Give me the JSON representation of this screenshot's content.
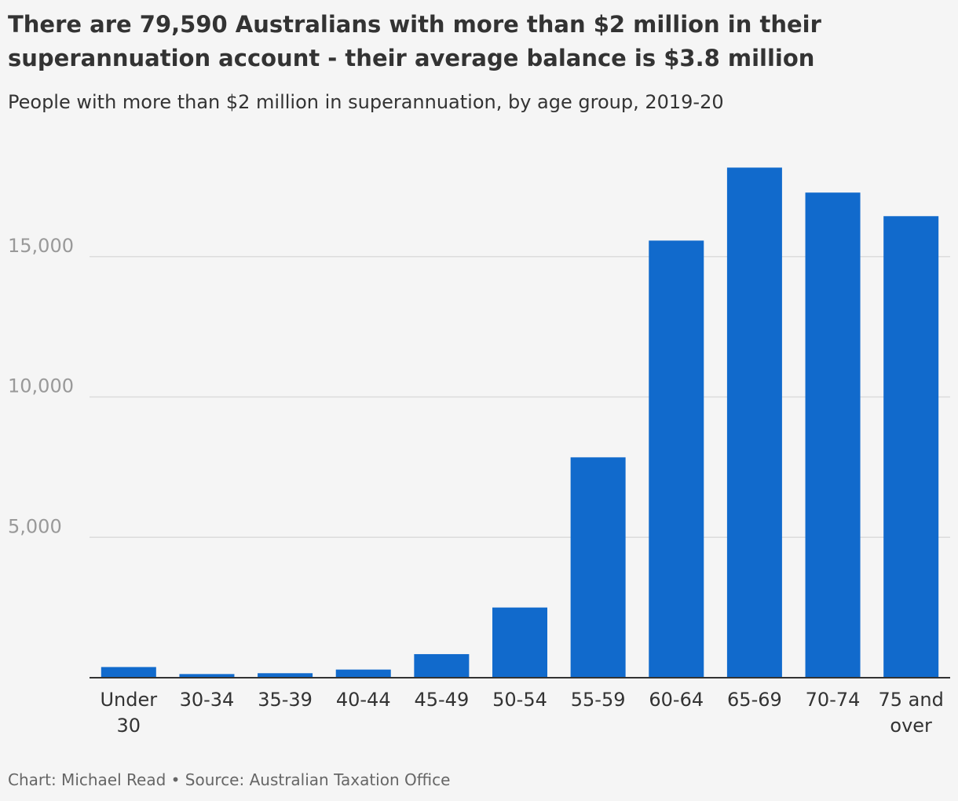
{
  "title": "There are 79,590 Australians with more than $2 million in their superannuation account - their average balance is $3.8 million",
  "subtitle": "People with more than $2 million in superannuation, by age group, 2019-20",
  "footer": {
    "credit": "Chart: Michael Read",
    "separator": "•",
    "source": "Source: Australian Taxation Office"
  },
  "colors": {
    "bar": "#116acc",
    "gridline": "#dcdcdc",
    "axis": "#333333",
    "tick_label": "#999999",
    "category_label": "#333333",
    "background": "#f5f5f5"
  },
  "chart_data": {
    "type": "bar",
    "categories": [
      "Under 30",
      "30-34",
      "35-39",
      "40-44",
      "45-49",
      "50-54",
      "55-59",
      "60-64",
      "65-69",
      "70-74",
      "75 and over"
    ],
    "values": [
      380,
      130,
      160,
      290,
      840,
      2500,
      7850,
      15570,
      18170,
      17280,
      16440
    ],
    "ylim": [
      0,
      19000
    ],
    "yticks": [
      5000,
      10000,
      15000
    ],
    "ytick_labels": [
      "5,000",
      "10,000",
      "15,000"
    ],
    "grid": true,
    "xlabel": "",
    "ylabel": ""
  }
}
